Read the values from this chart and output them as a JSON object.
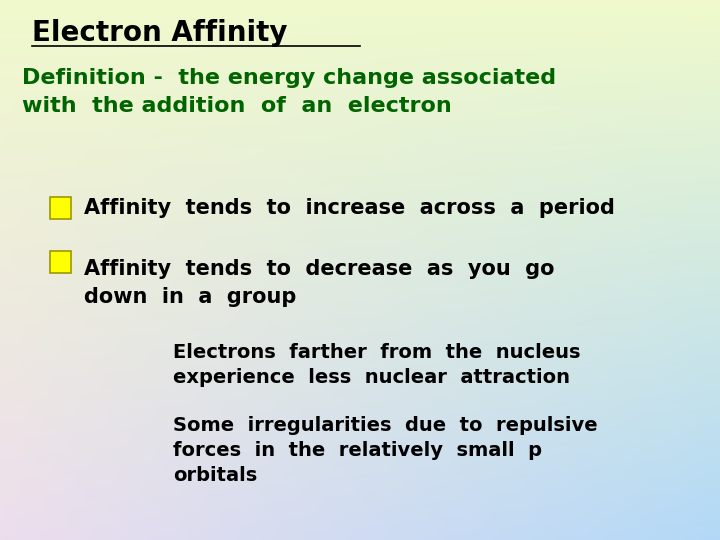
{
  "title": "Electron Affinity",
  "title_color": "#000000",
  "title_fontsize": 20,
  "title_font": "Comic Sans MS",
  "definition_text": "Definition -  the energy change associated\nwith  the addition  of  an  electron",
  "definition_color": "#006400",
  "definition_fontsize": 16,
  "definition_font": "Comic Sans MS",
  "bullet1": "Affinity  tends  to  increase  across  a  period",
  "bullet2": "Affinity  tends  to  decrease  as  you  go\ndown  in  a  group",
  "bullet_color": "#000000",
  "bullet_fontsize": 15,
  "bullet_font": "Comic Sans MS",
  "sub1": "Electrons  farther  from  the  nucleus\nexperience  less  nuclear  attraction",
  "sub2": "Some  irregularities  due  to  repulsive\nforces  in  the  relatively  small  p\norbitals",
  "sub_color": "#000000",
  "sub_fontsize": 14,
  "sub_font": "Comic Sans MS",
  "checkbox_color": "#FFFF00",
  "checkbox_edge": "#999900",
  "tl": [
    0.94,
    0.98,
    0.8
  ],
  "tr": [
    0.94,
    0.98,
    0.8
  ],
  "bl": [
    0.93,
    0.87,
    0.93
  ],
  "br": [
    0.7,
    0.85,
    0.97
  ]
}
